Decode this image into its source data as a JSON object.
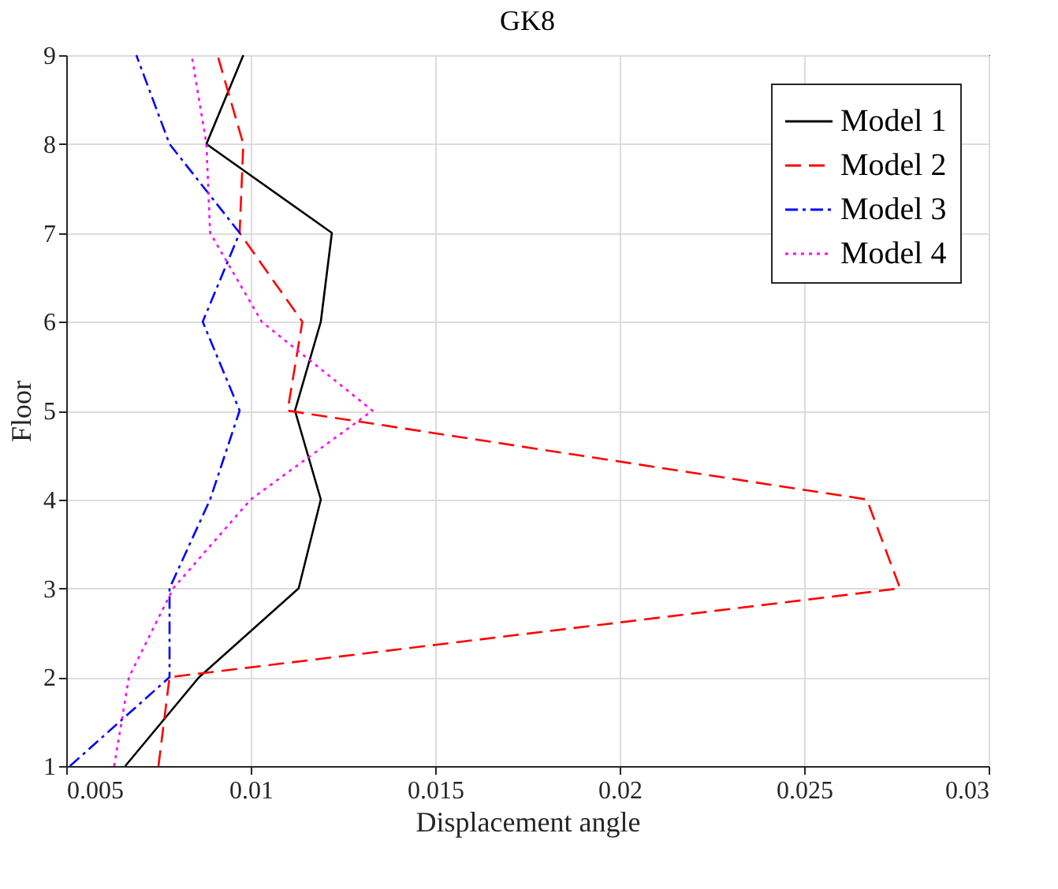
{
  "chart_data": {
    "type": "line",
    "title": "GK8",
    "xlabel": "Displacement angle",
    "ylabel": "Floor",
    "x": [
      1,
      2,
      3,
      4,
      5,
      6,
      7,
      8,
      9
    ],
    "orientation": "horizontal",
    "series": [
      {
        "name": "Model 1",
        "color": "#000000",
        "line_style": "solid",
        "values": [
          0.0066,
          0.0086,
          0.0113,
          0.0119,
          0.0112,
          0.0119,
          0.0122,
          0.0088,
          0.0098
        ]
      },
      {
        "name": "Model 2",
        "color": "#ff0000",
        "line_style": "dashed",
        "values": [
          0.0075,
          0.0078,
          0.0276,
          0.0267,
          0.011,
          0.0114,
          0.0097,
          0.0098,
          0.0091
        ]
      },
      {
        "name": "Model 3",
        "color": "#0000ff",
        "line_style": "dashdot",
        "values": [
          0.0051,
          0.0078,
          0.0078,
          0.0089,
          0.0097,
          0.0087,
          0.0097,
          0.0078,
          0.0069
        ]
      },
      {
        "name": "Model 4",
        "color": "#ff00ff",
        "line_style": "dotted",
        "values": [
          0.0063,
          0.0067,
          0.0079,
          0.01,
          0.0133,
          0.0103,
          0.0089,
          0.0088,
          0.0084
        ]
      }
    ],
    "xlim": [
      0.005,
      0.03
    ],
    "xticks": [
      0.005,
      0.01,
      0.015,
      0.02,
      0.025,
      0.03
    ],
    "ylim": [
      1,
      9
    ],
    "yticks": [
      1,
      2,
      3,
      4,
      5,
      6,
      7,
      8,
      9
    ],
    "grid": true,
    "legend": "top right",
    "marker": "none"
  }
}
